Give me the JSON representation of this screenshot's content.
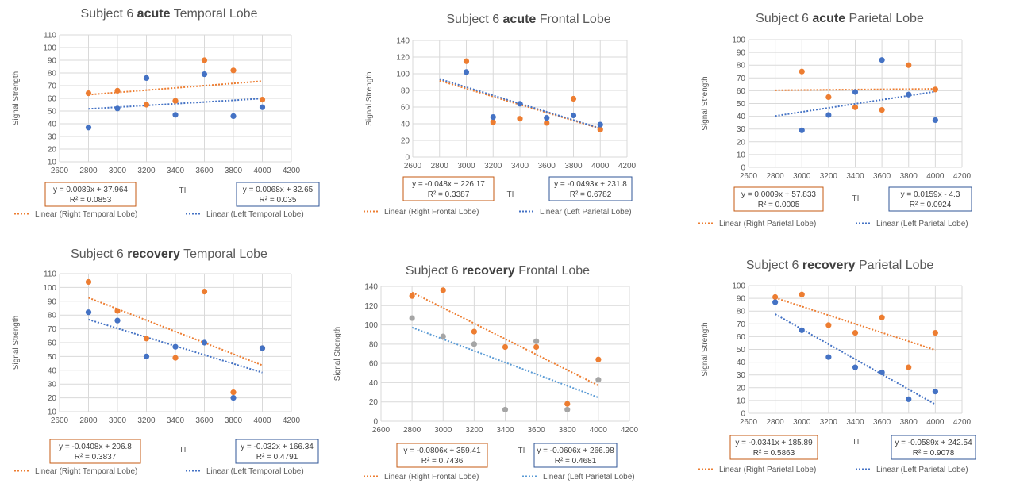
{
  "chart_data": [
    {
      "type": "scatter",
      "title_prefix": "Subject 6 ",
      "title_bold": "acute",
      "title_suffix": " Temporal Lobe",
      "xlabel": "TI",
      "ylabel": "Signal Strength",
      "xlim": [
        2600,
        4200
      ],
      "xstep": 200,
      "ylim": [
        10,
        110
      ],
      "ystep": 10,
      "series": [
        {
          "color": "#ed7d31",
          "x": [
            2800,
            3000,
            3200,
            3400,
            3600,
            3800,
            4000
          ],
          "y": [
            64,
            66,
            55,
            58,
            90,
            82,
            59
          ]
        },
        {
          "color": "#4472c4",
          "x": [
            2800,
            3000,
            3200,
            3400,
            3600,
            3800,
            4000
          ],
          "y": [
            37,
            52,
            76,
            47,
            79,
            46,
            53
          ]
        }
      ],
      "trendlines": [
        {
          "color": "#ed7d31",
          "slope": 0.0089,
          "intercept": 37.964,
          "equation": "y = 0.0089x + 37.964",
          "r2": "R² = 0.0853",
          "legend": "Linear (Right Temporal Lobe)"
        },
        {
          "color": "#4472c4",
          "slope": 0.0068,
          "intercept": 32.65,
          "equation": "y = 0.0068x + 32.65",
          "r2": "R² = 0.035",
          "legend": "Linear (Left Temporal Lobe)"
        }
      ]
    },
    {
      "type": "scatter",
      "title_prefix": "Subject 6 ",
      "title_bold": "acute",
      "title_suffix": " Frontal Lobe",
      "xlabel": "TI",
      "ylabel": "Signal Strength",
      "xlim": [
        2600,
        4200
      ],
      "xstep": 200,
      "ylim": [
        0,
        140
      ],
      "ystep": 20,
      "series": [
        {
          "color": "#ed7d31",
          "x": [
            3000,
            3200,
            3400,
            3600,
            3800,
            4000
          ],
          "y": [
            115,
            42,
            46,
            41,
            70,
            33
          ]
        },
        {
          "color": "#4472c4",
          "x": [
            3000,
            3200,
            3400,
            3600,
            3800,
            4000
          ],
          "y": [
            102,
            48,
            64,
            47,
            50,
            39
          ]
        }
      ],
      "trendlines": [
        {
          "color": "#ed7d31",
          "slope": -0.048,
          "intercept": 226.17,
          "equation": "y = -0.048x + 226.17",
          "r2": "R² = 0.3387",
          "legend": "Linear (Right Frontal Lobe)"
        },
        {
          "color": "#4472c4",
          "slope": -0.0493,
          "intercept": 231.8,
          "equation": "y = -0.0493x + 231.8",
          "r2": "R² = 0.6782",
          "legend": "Linear (Left Parietal Lobe)"
        }
      ]
    },
    {
      "type": "scatter",
      "title_prefix": "Subject 6 ",
      "title_bold": "acute",
      "title_suffix": " Parietal Lobe",
      "xlabel": "TI",
      "ylabel": "Signal Strength",
      "xlim": [
        2600,
        4200
      ],
      "xstep": 200,
      "ylim": [
        0,
        100
      ],
      "ystep": 10,
      "series": [
        {
          "color": "#ed7d31",
          "x": [
            3000,
            3200,
            3400,
            3600,
            3800,
            4000
          ],
          "y": [
            75,
            55,
            47,
            45,
            80,
            61
          ]
        },
        {
          "color": "#4472c4",
          "x": [
            3000,
            3200,
            3400,
            3600,
            3800,
            4000
          ],
          "y": [
            29,
            41,
            59,
            84,
            57,
            37
          ]
        }
      ],
      "trendlines": [
        {
          "color": "#ed7d31",
          "slope": 0.0009,
          "intercept": 57.833,
          "equation": "y = 0.0009x + 57.833",
          "r2": "R² = 0.0005",
          "legend": "Linear (Right Parietal Lobe)"
        },
        {
          "color": "#4472c4",
          "slope": 0.0159,
          "intercept": -4.3,
          "equation": "y = 0.0159x - 4.3",
          "r2": "R² = 0.0924",
          "legend": "Linear (Left Parietal Lobe)"
        }
      ]
    },
    {
      "type": "scatter",
      "title_prefix": "Subject 6 ",
      "title_bold": "recovery",
      "title_suffix": " Temporal Lobe",
      "xlabel": "TI",
      "ylabel": "Signal Strength",
      "xlim": [
        2600,
        4200
      ],
      "xstep": 200,
      "ylim": [
        10,
        110
      ],
      "ystep": 10,
      "series": [
        {
          "color": "#ed7d31",
          "x": [
            2800,
            3000,
            3200,
            3400,
            3600,
            3800,
            4000
          ],
          "y": [
            104,
            83,
            63,
            49,
            97,
            24,
            56
          ]
        },
        {
          "color": "#4472c4",
          "x": [
            2800,
            3000,
            3200,
            3400,
            3600,
            3800,
            4000
          ],
          "y": [
            82,
            76,
            50,
            57,
            60,
            20,
            56
          ]
        }
      ],
      "trendlines": [
        {
          "color": "#ed7d31",
          "slope": -0.0408,
          "intercept": 206.8,
          "equation": "y = -0.0408x + 206.8",
          "r2": "R² = 0.3837",
          "legend": "Linear (Right Temporal Lobe)"
        },
        {
          "color": "#4472c4",
          "slope": -0.032,
          "intercept": 166.34,
          "equation": "y = -0.032x + 166.34",
          "r2": "R² = 0.4791",
          "legend": "Linear (Left Temporal Lobe)"
        }
      ]
    },
    {
      "type": "scatter",
      "title_prefix": "Subject 6 ",
      "title_bold": "recovery",
      "title_suffix": " Frontal Lobe",
      "xlabel": "TI",
      "ylabel": "Signal Strength",
      "xlim": [
        2600,
        4200
      ],
      "xstep": 200,
      "ylim": [
        0,
        140
      ],
      "ystep": 20,
      "series": [
        {
          "color": "#ed7d31",
          "x": [
            2800,
            3000,
            3200,
            3400,
            3600,
            3800,
            4000
          ],
          "y": [
            130,
            136,
            93,
            77,
            77,
            18,
            64
          ]
        },
        {
          "color": "#a5a5a5",
          "x": [
            2800,
            3000,
            3200,
            3400,
            3600,
            3800,
            4000
          ],
          "y": [
            107,
            88,
            80,
            12,
            83,
            12,
            43
          ]
        }
      ],
      "trendlines": [
        {
          "color": "#ed7d31",
          "slope": -0.0806,
          "intercept": 359.41,
          "equation": "y = -0.0806x + 359.41",
          "r2": "R² = 0.7436",
          "legend": "Linear (Right Frontal Lobe)"
        },
        {
          "color": "#5b9bd5",
          "slope": -0.0606,
          "intercept": 266.98,
          "equation": "y = -0.0606x + 266.98",
          "r2": "R² = 0.4681",
          "legend": "Linear (Left Parietal Lobe)"
        }
      ]
    },
    {
      "type": "scatter",
      "title_prefix": "Subject 6 ",
      "title_bold": "recovery",
      "title_suffix": " Parietal Lobe",
      "xlabel": "TI",
      "ylabel": "Signal Strength",
      "xlim": [
        2600,
        4200
      ],
      "xstep": 200,
      "ylim": [
        0,
        100
      ],
      "ystep": 10,
      "series": [
        {
          "color": "#ed7d31",
          "x": [
            2800,
            3000,
            3200,
            3400,
            3600,
            3800,
            4000
          ],
          "y": [
            91,
            93,
            69,
            63,
            75,
            36,
            63
          ]
        },
        {
          "color": "#4472c4",
          "x": [
            2800,
            3000,
            3200,
            3400,
            3600,
            3800,
            4000
          ],
          "y": [
            87,
            65,
            44,
            36,
            32,
            11,
            17
          ]
        }
      ],
      "trendlines": [
        {
          "color": "#ed7d31",
          "slope": -0.0341,
          "intercept": 185.89,
          "equation": "y = -0.0341x + 185.89",
          "r2": "R² = 0.5863",
          "legend": "Linear (Right Parietal Lobe)"
        },
        {
          "color": "#4472c4",
          "slope": -0.0589,
          "intercept": 242.54,
          "equation": "y = -0.0589x + 242.54",
          "r2": "R² = 0.9078",
          "legend": "Linear (Left Parietal Lobe)"
        }
      ]
    }
  ]
}
